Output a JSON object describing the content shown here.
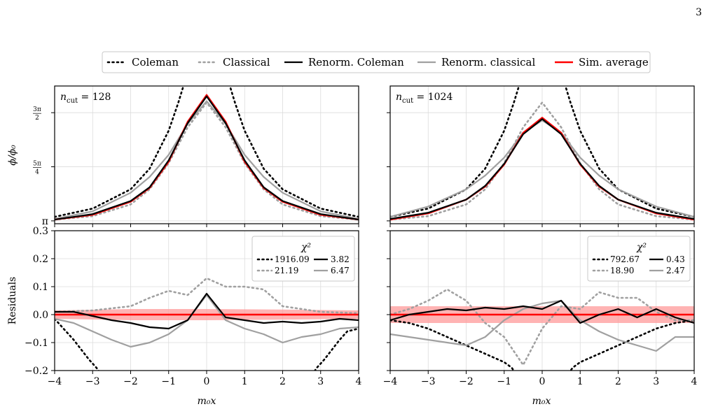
{
  "page_number": "3",
  "legend": {
    "items": [
      {
        "label": "Coleman",
        "color": "#000000",
        "style": "dotted"
      },
      {
        "label": "Classical",
        "color": "#a0a0a0",
        "style": "dotted"
      },
      {
        "label": "Renorm. Coleman",
        "color": "#000000",
        "style": "solid"
      },
      {
        "label": "Renorm. classical",
        "color": "#a0a0a0",
        "style": "solid"
      },
      {
        "label": "Sim. average",
        "color": "#ff0000",
        "style": "solid"
      }
    ],
    "placement": "top-center"
  },
  "axis_text": {
    "top_ylabel": "ϕ/ϕ₀",
    "bottom_ylabel": "Residuals",
    "xlabel": "m₀x",
    "x_ticks": [
      "−4",
      "−3",
      "−2",
      "−1",
      "0",
      "1",
      "2",
      "3",
      "4"
    ],
    "top_y_ticks": [
      {
        "value": 3.14159,
        "label": "π",
        "frac": false
      },
      {
        "value": 3.92699,
        "label": "",
        "num": "5π",
        "den": "4",
        "frac": true
      },
      {
        "value": 4.71239,
        "label": "",
        "num": "3π",
        "den": "2",
        "frac": true
      }
    ],
    "bottom_y_ticks": [
      "0.3",
      "0.2",
      "0.1",
      "0.0",
      "−0.1",
      "−0.2"
    ],
    "chi_title": "χ²"
  },
  "chart_data": [
    {
      "type": "line",
      "panel": "top-left",
      "annotation": "n_cut = 128",
      "xlim": [
        -4,
        4
      ],
      "ylim": [
        3.1,
        5.1
      ],
      "series": [
        {
          "name": "Coleman",
          "x": [
            -4,
            -3,
            -2,
            -1.5,
            -1,
            -0.75,
            -0.5,
            0.5,
            0.75,
            1,
            1.5,
            2,
            3,
            4
          ],
          "y": [
            3.2,
            3.32,
            3.6,
            3.9,
            4.45,
            4.85,
            5.3,
            5.3,
            4.85,
            4.45,
            3.9,
            3.6,
            3.32,
            3.2
          ]
        },
        {
          "name": "Classical",
          "x": [
            -4,
            -3,
            -2,
            -1.5,
            -1,
            -0.5,
            0,
            0.5,
            1,
            1.5,
            2,
            3,
            4
          ],
          "y": [
            3.16,
            3.21,
            3.38,
            3.6,
            3.98,
            4.5,
            4.86,
            4.5,
            3.98,
            3.6,
            3.38,
            3.21,
            3.16
          ]
        },
        {
          "name": "Renorm. Coleman",
          "x": [
            -4,
            -3,
            -2,
            -1.5,
            -1,
            -0.5,
            0,
            0.5,
            1,
            1.5,
            2,
            3,
            4
          ],
          "y": [
            3.16,
            3.24,
            3.43,
            3.63,
            4.02,
            4.56,
            4.95,
            4.56,
            4.02,
            3.63,
            3.43,
            3.24,
            3.16
          ]
        },
        {
          "name": "Renorm. classical",
          "x": [
            -4,
            -3,
            -2,
            -1.5,
            -1,
            -0.5,
            0,
            0.5,
            1,
            1.5,
            2,
            3,
            4
          ],
          "y": [
            3.17,
            3.28,
            3.55,
            3.78,
            4.1,
            4.55,
            4.88,
            4.55,
            4.1,
            3.78,
            3.55,
            3.28,
            3.17
          ]
        },
        {
          "name": "Sim. average",
          "x": [
            -4,
            -3,
            -2,
            -1.5,
            -1,
            -0.5,
            0,
            0.5,
            1,
            1.5,
            2,
            3,
            4
          ],
          "y": [
            3.16,
            3.23,
            3.42,
            3.62,
            4.0,
            4.58,
            4.97,
            4.58,
            4.0,
            3.62,
            3.42,
            3.23,
            3.16
          ]
        }
      ]
    },
    {
      "type": "line",
      "panel": "top-right",
      "annotation": "n_cut = 1024",
      "xlim": [
        -4,
        4
      ],
      "ylim": [
        3.1,
        5.1
      ],
      "series": [
        {
          "name": "Coleman",
          "x": [
            -4,
            -3,
            -2,
            -1.5,
            -1,
            -0.75,
            -0.5,
            0.5,
            0.75,
            1,
            1.5,
            2,
            3,
            4
          ],
          "y": [
            3.2,
            3.32,
            3.6,
            3.9,
            4.45,
            4.85,
            5.3,
            5.3,
            4.85,
            4.45,
            3.9,
            3.6,
            3.32,
            3.2
          ]
        },
        {
          "name": "Classical",
          "x": [
            -4,
            -3,
            -2,
            -1.5,
            -1,
            -0.5,
            0,
            0.5,
            1,
            1.5,
            2,
            3,
            4
          ],
          "y": [
            3.16,
            3.21,
            3.38,
            3.6,
            3.98,
            4.5,
            4.86,
            4.5,
            3.98,
            3.6,
            3.38,
            3.21,
            3.16
          ]
        },
        {
          "name": "Renorm. Coleman",
          "x": [
            -4,
            -3,
            -2,
            -1.5,
            -1,
            -0.5,
            0,
            0.5,
            1,
            1.5,
            2,
            3,
            4
          ],
          "y": [
            3.17,
            3.26,
            3.45,
            3.65,
            3.97,
            4.4,
            4.62,
            4.4,
            3.97,
            3.65,
            3.45,
            3.26,
            3.17
          ]
        },
        {
          "name": "Renorm. classical",
          "x": [
            -4,
            -3,
            -2,
            -1.5,
            -1,
            -0.5,
            0,
            0.5,
            1,
            1.5,
            2,
            3,
            4
          ],
          "y": [
            3.2,
            3.35,
            3.6,
            3.8,
            4.06,
            4.42,
            4.6,
            4.42,
            4.06,
            3.8,
            3.6,
            3.35,
            3.2
          ]
        },
        {
          "name": "Sim. average",
          "x": [
            -4,
            -3,
            -2,
            -1.5,
            -1,
            -0.5,
            0,
            0.5,
            1,
            1.5,
            2,
            3,
            4
          ],
          "y": [
            3.16,
            3.25,
            3.45,
            3.64,
            3.96,
            4.42,
            4.64,
            4.42,
            3.96,
            3.64,
            3.45,
            3.25,
            3.16
          ]
        }
      ]
    },
    {
      "type": "line",
      "panel": "bottom-left",
      "ylabel": "Residuals",
      "xlabel": "m₀x",
      "xlim": [
        -4,
        4
      ],
      "ylim": [
        -0.2,
        0.3
      ],
      "band": {
        "name": "Sim. average",
        "x": [
          -4,
          -2,
          0,
          2,
          4
        ],
        "lower": [
          -0.015,
          -0.02,
          -0.02,
          -0.018,
          -0.015
        ],
        "upper": [
          0.015,
          0.02,
          0.02,
          0.018,
          0.015
        ]
      },
      "series": [
        {
          "name": "Coleman",
          "chi2": "1916.09",
          "x": [
            -4,
            -3.7,
            -3.5,
            -3.3,
            -3.1,
            -2.9,
            -2.8,
            2.8,
            2.9,
            3.1,
            3.3,
            3.5,
            3.7,
            4
          ],
          "y": [
            -0.015,
            -0.06,
            -0.09,
            -0.125,
            -0.16,
            -0.19,
            -0.21,
            -0.21,
            -0.19,
            -0.16,
            -0.125,
            -0.09,
            -0.06,
            -0.05
          ]
        },
        {
          "name": "Classical",
          "chi2": "21.19",
          "x": [
            -4,
            -3,
            -2,
            -1.5,
            -1,
            -0.5,
            0,
            0.5,
            1,
            1.5,
            2,
            3,
            4
          ],
          "y": [
            0.01,
            0.015,
            0.03,
            0.06,
            0.085,
            0.07,
            0.13,
            0.1,
            0.1,
            0.09,
            0.03,
            0.01,
            0.005
          ]
        },
        {
          "name": "Renorm. Coleman",
          "chi2": "3.82",
          "x": [
            -4,
            -3.5,
            -3,
            -2.5,
            -2,
            -1.5,
            -1,
            -0.5,
            0,
            0.5,
            1,
            1.5,
            2,
            2.5,
            3,
            3.5,
            4
          ],
          "y": [
            0.01,
            0.01,
            -0.005,
            -0.02,
            -0.03,
            -0.045,
            -0.05,
            -0.02,
            0.075,
            -0.01,
            -0.02,
            -0.03,
            -0.025,
            -0.03,
            -0.025,
            -0.015,
            -0.02
          ]
        },
        {
          "name": "Renorm. classical",
          "chi2": "6.47",
          "x": [
            -4,
            -3.5,
            -3,
            -2.5,
            -2,
            -1.5,
            -1,
            -0.5,
            0,
            0.5,
            1,
            1.5,
            2,
            2.5,
            3,
            3.5,
            4
          ],
          "y": [
            -0.015,
            -0.03,
            -0.06,
            -0.09,
            -0.115,
            -0.1,
            -0.07,
            -0.02,
            0.07,
            -0.02,
            -0.05,
            -0.07,
            -0.1,
            -0.08,
            -0.07,
            -0.05,
            -0.045
          ]
        },
        {
          "name": "Sim. average",
          "x": [
            -4,
            4
          ],
          "y": [
            0,
            0
          ]
        }
      ]
    },
    {
      "type": "line",
      "panel": "bottom-right",
      "xlabel": "m₀x",
      "xlim": [
        -4,
        4
      ],
      "ylim": [
        -0.2,
        0.3
      ],
      "band": {
        "name": "Sim. average",
        "x": [
          -4,
          -2,
          0,
          2,
          4
        ],
        "lower": [
          -0.03,
          -0.03,
          -0.03,
          -0.03,
          -0.03
        ],
        "upper": [
          0.03,
          0.03,
          0.03,
          0.03,
          0.03
        ]
      },
      "series": [
        {
          "name": "Coleman",
          "chi2": "792.67",
          "x": [
            -4,
            -3.5,
            -3,
            -2.5,
            -2,
            -1.5,
            -1,
            -0.8,
            -0.7,
            0.7,
            0.8,
            1,
            1.5,
            2,
            2.5,
            3,
            3.5,
            4
          ],
          "y": [
            -0.02,
            -0.03,
            -0.05,
            -0.08,
            -0.11,
            -0.14,
            -0.17,
            -0.19,
            -0.21,
            -0.21,
            -0.19,
            -0.17,
            -0.14,
            -0.11,
            -0.08,
            -0.05,
            -0.03,
            -0.02
          ]
        },
        {
          "name": "Classical",
          "chi2": "18.90",
          "x": [
            -4,
            -3.5,
            -3,
            -2.5,
            -2,
            -1.5,
            -1,
            -0.5,
            0,
            0.5,
            1,
            1.5,
            2,
            2.5,
            3,
            3.5,
            4
          ],
          "y": [
            0.0,
            0.02,
            0.05,
            0.09,
            0.05,
            -0.03,
            -0.08,
            -0.18,
            -0.05,
            0.03,
            0.02,
            0.08,
            0.06,
            0.06,
            0.01,
            -0.02,
            -0.02
          ]
        },
        {
          "name": "Renorm. Coleman",
          "chi2": "0.43",
          "x": [
            -4,
            -3.5,
            -3,
            -2.5,
            -2,
            -1.5,
            -1,
            -0.5,
            0,
            0.5,
            1,
            1.5,
            2,
            2.5,
            3,
            3.5,
            4
          ],
          "y": [
            -0.02,
            0.0,
            0.01,
            0.02,
            0.015,
            0.025,
            0.02,
            0.03,
            0.02,
            0.05,
            -0.03,
            0.0,
            0.02,
            -0.01,
            0.02,
            -0.01,
            -0.03
          ]
        },
        {
          "name": "Renorm. classical",
          "chi2": "2.47",
          "x": [
            -4,
            -3.5,
            -3,
            -2.5,
            -2,
            -1.5,
            -1,
            -0.5,
            0,
            0.5,
            1,
            1.5,
            2,
            2.5,
            3,
            3.5,
            4
          ],
          "y": [
            -0.07,
            -0.08,
            -0.09,
            -0.1,
            -0.11,
            -0.08,
            -0.02,
            0.02,
            0.04,
            0.05,
            -0.02,
            -0.06,
            -0.09,
            -0.11,
            -0.13,
            -0.08,
            -0.08
          ]
        },
        {
          "name": "Sim. average",
          "x": [
            -4,
            4
          ],
          "y": [
            0,
            0
          ]
        }
      ]
    }
  ]
}
